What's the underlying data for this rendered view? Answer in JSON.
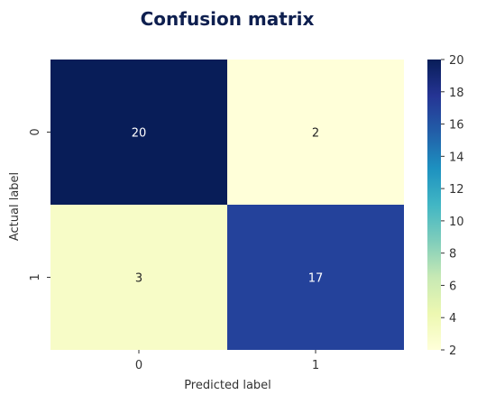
{
  "chart_data": {
    "type": "heatmap",
    "title": "Confusion matrix",
    "xlabel": "Predicted label",
    "ylabel": "Actual label",
    "x_categories": [
      "0",
      "1"
    ],
    "y_categories": [
      "0",
      "1"
    ],
    "values": [
      [
        20,
        2
      ],
      [
        3,
        17
      ]
    ],
    "colormap": "YlGnBu",
    "colorbar": {
      "min": 2,
      "max": 20,
      "ticks": [
        2,
        4,
        6,
        8,
        10,
        12,
        14,
        16,
        18,
        20
      ],
      "colors": [
        "#ffffd9",
        "#edf8b1",
        "#c7e9b4",
        "#7fcdbb",
        "#41b6c4",
        "#1d91c0",
        "#225ea8",
        "#253494",
        "#081d58"
      ]
    },
    "title_color": "#0e1f4f",
    "text_color": "#333333"
  }
}
